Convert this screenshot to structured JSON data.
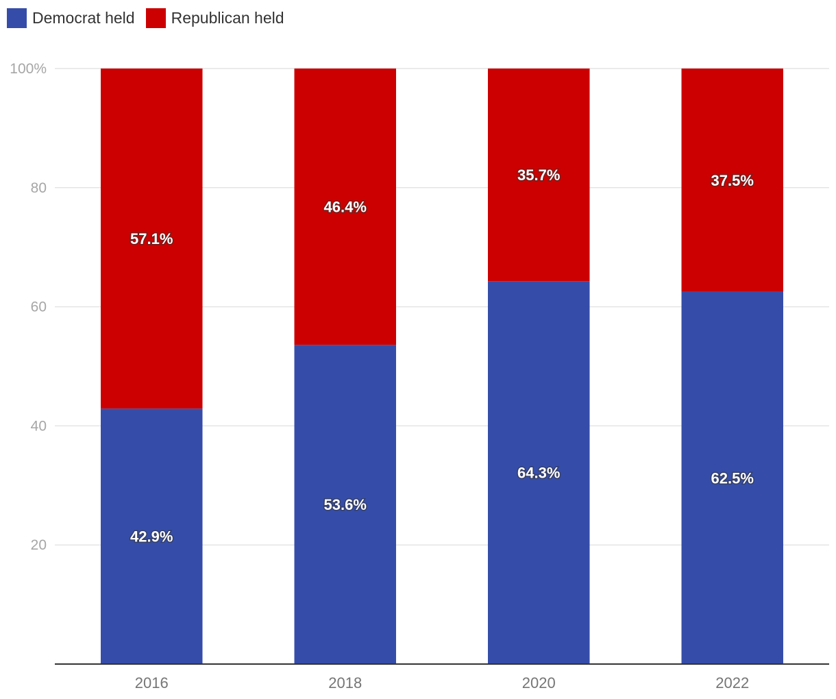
{
  "legend": {
    "democrat_label": "Democrat held",
    "republican_label": "Republican held"
  },
  "colors": {
    "democrat": "#354da9",
    "republican": "#cc0000",
    "grid": "#e4e4e4",
    "axis": "#333333"
  },
  "chart_data": {
    "type": "bar",
    "stacked": true,
    "categories": [
      "2016",
      "2018",
      "2020",
      "2022"
    ],
    "series": [
      {
        "name": "Democrat held",
        "color": "#354da9",
        "values": [
          42.9,
          53.6,
          64.3,
          62.5
        ],
        "labels": [
          "42.9%",
          "53.6%",
          "64.3%",
          "62.5%"
        ]
      },
      {
        "name": "Republican held",
        "color": "#cc0000",
        "values": [
          57.1,
          46.4,
          35.7,
          37.5
        ],
        "labels": [
          "57.1%",
          "46.4%",
          "35.7%",
          "37.5%"
        ]
      }
    ],
    "yticks": [
      20,
      40,
      60,
      80,
      100
    ],
    "ytick_labels": [
      "20",
      "40",
      "60",
      "80",
      "100%"
    ],
    "ylim": [
      0,
      100
    ],
    "title": "",
    "xlabel": "",
    "ylabel": "",
    "grid": true,
    "legend_position": "top-left"
  }
}
